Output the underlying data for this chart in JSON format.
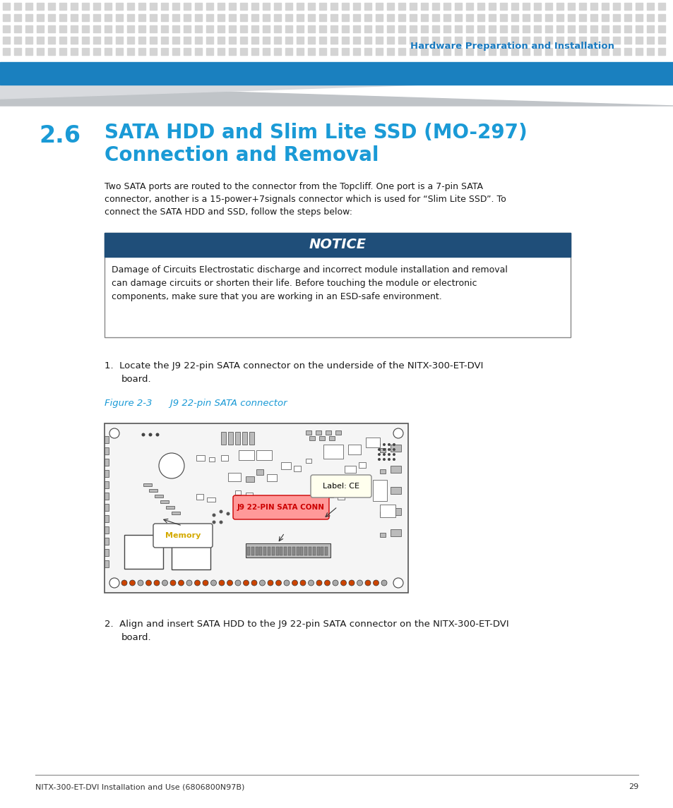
{
  "page_bg": "#ffffff",
  "header_dot_color": "#d4d4d4",
  "header_bar_color": "#1a80bf",
  "header_title": "Hardware Preparation and Installation",
  "header_title_color": "#1a7abf",
  "section_number": "2.6",
  "section_title_line1": "SATA HDD and Slim Lite SSD (MO-297)",
  "section_title_line2": "Connection and Removal",
  "section_color": "#1a9ad6",
  "body_text_line1": "Two SATA ports are routed to the connector from the Topcliff. One port is a 7-pin SATA",
  "body_text_line2": "connector, another is a 15-power+7signals connector which is used for “Slim Lite SSD”. To",
  "body_text_line3": "connect the SATA HDD and SSD, follow the steps below:",
  "body_color": "#1a1a1a",
  "notice_bar_color": "#1f4e79",
  "notice_title": "NOTICE",
  "notice_title_color": "#ffffff",
  "notice_body_line1": "Damage of Circuits Electrostatic discharge and incorrect module installation and removal",
  "notice_body_line2": "can damage circuits or shorten their life. Before touching the module or electronic",
  "notice_body_line3": "components, make sure that you are working in an ESD-safe environment.",
  "notice_border_color": "#888888",
  "step1_line1": "1.  Locate the J9 22-pin SATA connector on the underside of the NITX-300-ET-DVI",
  "step1_line2": "board.",
  "figure_label": "Figure 2-3      J9 22-pin SATA connector",
  "figure_label_color": "#1a9ad6",
  "step2_line1": "2.  Align and insert SATA HDD to the J9 22-pin SATA connector on the NITX-300-ET-DVI",
  "step2_line2": "board.",
  "footer_text": "NITX-300-ET-DVI Installation and Use (6806800N97B)",
  "footer_page": "29",
  "footer_color": "#333333",
  "footer_line_color": "#888888",
  "pcb_border": "#555555",
  "pcb_bg": "#f5f5f5",
  "sata_label_bg": "#ff9999",
  "sata_label_border": "#cc0000",
  "sata_label_text": "J9 22-PIN SATA CONN",
  "sata_label_color": "#cc0000",
  "memory_label_text": "Memory",
  "memory_label_color": "#d4aa00",
  "ce_label_text": "Label: CE",
  "ce_label_bg": "#ffffee",
  "ce_label_border": "#888888"
}
